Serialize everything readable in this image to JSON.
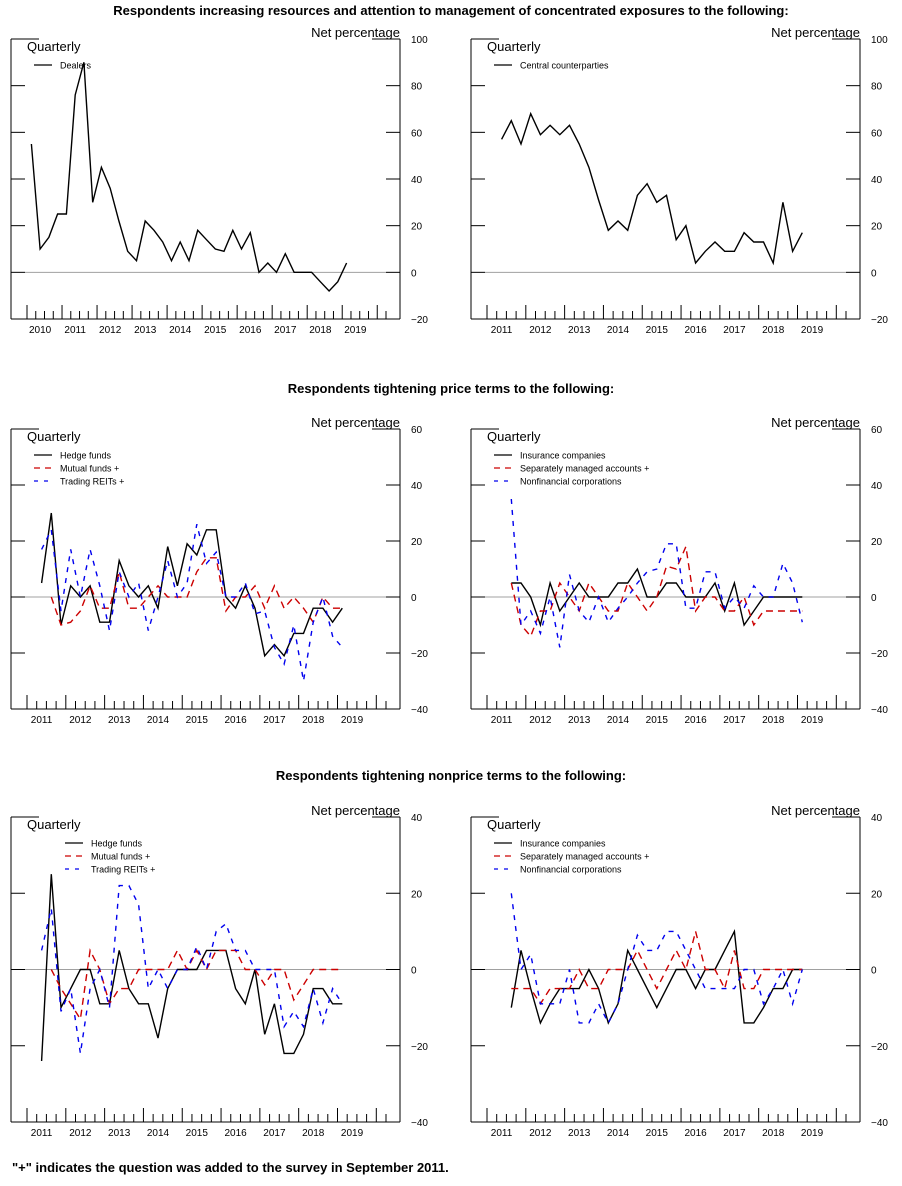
{
  "sections": [
    {
      "title": "Respondents increasing resources and attention to management of concentrated exposures to the following:"
    },
    {
      "title": "Respondents tightening price terms to the following:"
    },
    {
      "title": "Respondents tightening nonprice terms to the following:"
    }
  ],
  "footnote": "\"+\" indicates the question was added to the survey in September 2011.",
  "colors": {
    "black": "#000000",
    "red": "#cc0000",
    "blue": "#0000ee",
    "zero_line": "#a0a0a0"
  },
  "chart_data": [
    {
      "id": "dealers",
      "type": "line",
      "frequency_label": "Quarterly",
      "ylabel": "Net percentage",
      "ylim": [
        -20,
        100
      ],
      "yticks": [
        -20,
        0,
        20,
        40,
        60,
        80,
        100
      ],
      "x_start_year": 2010,
      "x_years": [
        "2010",
        "2011",
        "2012",
        "2013",
        "2014",
        "2015",
        "2016",
        "2017",
        "2018",
        "2019"
      ],
      "series": [
        {
          "name": "Dealers",
          "style": "solid",
          "color": "#000000",
          "start": "2010Q1",
          "values": [
            55,
            10,
            15,
            25,
            25,
            76,
            90,
            30,
            45,
            36,
            22,
            9,
            5,
            22,
            18,
            13,
            5,
            13,
            5,
            18,
            14,
            10,
            9,
            18,
            10,
            17,
            0,
            4,
            0,
            8,
            0,
            0,
            0,
            -4,
            -8,
            -4,
            4
          ]
        }
      ]
    },
    {
      "id": "ccp",
      "type": "line",
      "frequency_label": "Quarterly",
      "ylabel": "Net percentage",
      "ylim": [
        -20,
        100
      ],
      "yticks": [
        -20,
        0,
        20,
        40,
        60,
        80,
        100
      ],
      "x_start_year": 2011,
      "x_years": [
        "2011",
        "2012",
        "2013",
        "2014",
        "2015",
        "2016",
        "2017",
        "2018",
        "2019"
      ],
      "series": [
        {
          "name": "Central counterparties",
          "style": "solid",
          "color": "#000000",
          "start": "2011Q2",
          "values": [
            57,
            65,
            55,
            68,
            59,
            63,
            59,
            63,
            55,
            45,
            31,
            18,
            22,
            18,
            33,
            38,
            30,
            33,
            14,
            20,
            4,
            9,
            13,
            9,
            9,
            17,
            13,
            13,
            4,
            30,
            9,
            17
          ]
        }
      ]
    },
    {
      "id": "price-left",
      "type": "line",
      "frequency_label": "Quarterly",
      "ylabel": "Net percentage",
      "ylim": [
        -40,
        60
      ],
      "yticks": [
        -40,
        -20,
        0,
        20,
        40,
        60
      ],
      "x_start_year": 2011,
      "x_years": [
        "2011",
        "2012",
        "2013",
        "2014",
        "2015",
        "2016",
        "2017",
        "2018",
        "2019"
      ],
      "series": [
        {
          "name": "Hedge funds",
          "style": "solid",
          "color": "#000000",
          "start": "2011Q2",
          "values": [
            5,
            30,
            -10,
            4,
            0,
            4,
            -9,
            -9,
            13,
            4,
            0,
            4,
            -4,
            18,
            4,
            19,
            15,
            24,
            24,
            0,
            -4,
            4,
            -4,
            -21,
            -17,
            -21,
            -13,
            -13,
            -4,
            -4,
            -9,
            -4
          ]
        },
        {
          "name": "Mutual funds +",
          "style": "dashed",
          "color": "#cc0000",
          "start": "2011Q3",
          "values": [
            0,
            -10,
            -9,
            -5,
            4,
            -4,
            -4,
            9,
            -4,
            -4,
            0,
            4,
            0,
            0,
            0,
            9,
            14,
            14,
            -5,
            0,
            0,
            4,
            -4,
            4,
            -4,
            0,
            -4,
            -9,
            0,
            -4,
            -4
          ]
        },
        {
          "name": "Trading REITs +",
          "style": "dotted",
          "color": "#0000ee",
          "start": "2011Q2",
          "values": [
            17,
            24,
            -5,
            17,
            0,
            17,
            4,
            -12,
            9,
            0,
            5,
            -12,
            0,
            13,
            0,
            5,
            26,
            12,
            16,
            0,
            0,
            5,
            -6,
            -5,
            -18,
            -24,
            -10,
            -30,
            -9,
            0,
            -14,
            -18
          ]
        }
      ]
    },
    {
      "id": "price-right",
      "type": "line",
      "frequency_label": "Quarterly",
      "ylabel": "Net percentage",
      "ylim": [
        -40,
        60
      ],
      "yticks": [
        -40,
        -20,
        0,
        20,
        40,
        60
      ],
      "x_start_year": 2011,
      "x_years": [
        "2011",
        "2012",
        "2013",
        "2014",
        "2015",
        "2016",
        "2017",
        "2018",
        "2019"
      ],
      "series": [
        {
          "name": "Insurance companies",
          "style": "solid",
          "color": "#000000",
          "start": "2011Q3",
          "values": [
            5,
            5,
            0,
            -10,
            5,
            -5,
            0,
            5,
            0,
            0,
            0,
            5,
            5,
            10,
            0,
            0,
            5,
            5,
            0,
            0,
            0,
            5,
            -5,
            5,
            -10,
            -5,
            0,
            0,
            0,
            0,
            0
          ]
        },
        {
          "name": "Separately managed accounts +",
          "style": "dashed",
          "color": "#cc0000",
          "start": "2011Q3",
          "values": [
            5,
            -10,
            -14,
            -5,
            -5,
            5,
            0,
            -5,
            5,
            0,
            -5,
            -5,
            5,
            0,
            -5,
            0,
            11,
            10,
            18,
            -5,
            0,
            0,
            -5,
            -5,
            0,
            -10,
            -5,
            -5,
            -5,
            -5,
            -5
          ]
        },
        {
          "name": "Nonfinancial corporations",
          "style": "dotted",
          "color": "#0000ee",
          "start": "2011Q3",
          "values": [
            35,
            -10,
            -5,
            -13,
            0,
            -18,
            8,
            -5,
            -9,
            0,
            -9,
            -4,
            0,
            5,
            9,
            10,
            19,
            19,
            -4,
            -4,
            9,
            9,
            -4,
            0,
            -4,
            4,
            0,
            0,
            12,
            5,
            -9
          ]
        }
      ]
    },
    {
      "id": "nonprice-left",
      "type": "line",
      "frequency_label": "Quarterly",
      "ylabel": "Net percentage",
      "ylim": [
        -40,
        40
      ],
      "yticks": [
        -40,
        -20,
        0,
        20,
        40
      ],
      "x_start_year": 2011,
      "x_years": [
        "2011",
        "2012",
        "2013",
        "2014",
        "2015",
        "2016",
        "2017",
        "2018",
        "2019"
      ],
      "series": [
        {
          "name": "Hedge funds",
          "style": "solid",
          "color": "#000000",
          "start": "2011Q2",
          "values": [
            -24,
            25,
            -10,
            -5,
            0,
            0,
            -9,
            -9,
            5,
            -5,
            -9,
            -9,
            -18,
            -5,
            0,
            0,
            0,
            5,
            5,
            5,
            -5,
            -9,
            0,
            -17,
            -9,
            -22,
            -22,
            -17,
            -5,
            -5,
            -9,
            -9
          ]
        },
        {
          "name": "Mutual funds +",
          "style": "dashed",
          "color": "#cc0000",
          "start": "2011Q3",
          "values": [
            0,
            -5,
            -9,
            -13,
            5,
            0,
            -9,
            -5,
            -5,
            0,
            0,
            0,
            0,
            5,
            0,
            5,
            0,
            5,
            5,
            5,
            0,
            0,
            -4,
            0,
            0,
            -8,
            -4,
            0,
            0,
            0,
            0
          ]
        },
        {
          "name": "Trading REITs +",
          "style": "dotted",
          "color": "#0000ee",
          "start": "2011Q2",
          "values": [
            5,
            16,
            -11,
            -5,
            -22,
            -5,
            0,
            -10,
            22,
            22,
            17,
            -5,
            0,
            -5,
            0,
            0,
            6,
            0,
            10,
            12,
            5,
            5,
            0,
            0,
            0,
            -15,
            -11,
            -15,
            -5,
            -14,
            -5,
            -9
          ]
        }
      ]
    },
    {
      "id": "nonprice-right",
      "type": "line",
      "frequency_label": "Quarterly",
      "ylabel": "Net percentage",
      "ylim": [
        -40,
        40
      ],
      "yticks": [
        -40,
        -20,
        0,
        20,
        40
      ],
      "x_start_year": 2011,
      "x_years": [
        "2011",
        "2012",
        "2013",
        "2014",
        "2015",
        "2016",
        "2017",
        "2018",
        "2019"
      ],
      "series": [
        {
          "name": "Insurance companies",
          "style": "solid",
          "color": "#000000",
          "start": "2011Q3",
          "values": [
            -10,
            5,
            -5,
            -14,
            -9,
            -5,
            -5,
            -5,
            0,
            -5,
            -14,
            -9,
            5,
            0,
            -5,
            -10,
            -5,
            0,
            0,
            -5,
            0,
            0,
            5,
            10,
            -14,
            -14,
            -10,
            -5,
            -5,
            0,
            0
          ]
        },
        {
          "name": "Separately managed accounts +",
          "style": "dashed",
          "color": "#cc0000",
          "start": "2011Q3",
          "values": [
            -5,
            -5,
            -5,
            -9,
            -5,
            -5,
            -5,
            0,
            -5,
            -5,
            0,
            0,
            0,
            5,
            0,
            -5,
            0,
            5,
            0,
            10,
            0,
            0,
            -5,
            5,
            -5,
            -5,
            0,
            0,
            0,
            0,
            0
          ]
        },
        {
          "name": "Nonfinancial corporations",
          "style": "dotted",
          "color": "#0000ee",
          "start": "2011Q3",
          "values": [
            20,
            0,
            4,
            -9,
            -9,
            -9,
            0,
            -14,
            -14,
            -9,
            -14,
            -9,
            0,
            9,
            5,
            5,
            10,
            10,
            5,
            0,
            -5,
            -5,
            -5,
            -5,
            0,
            0,
            -9,
            -5,
            0,
            -9,
            0
          ]
        }
      ]
    }
  ]
}
